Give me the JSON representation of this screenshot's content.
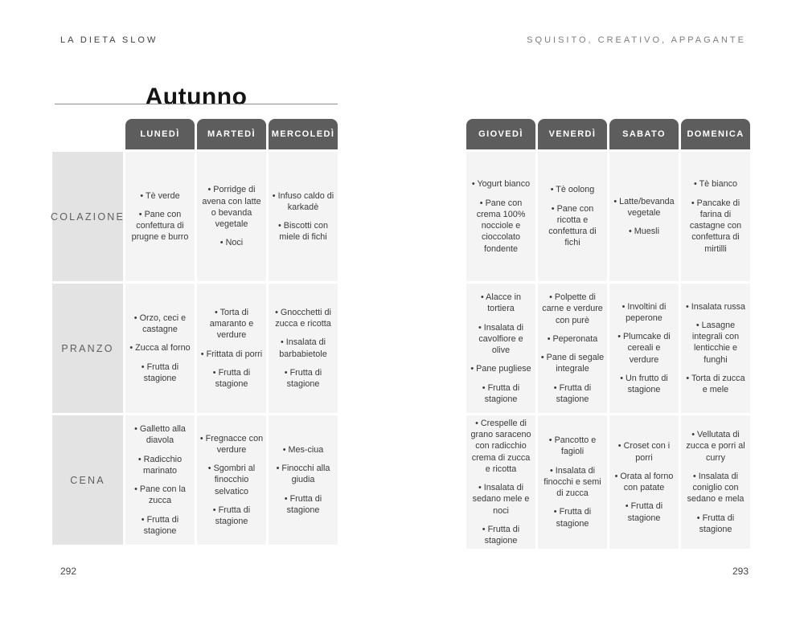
{
  "bullet": "•",
  "colors": {
    "tab_bg": "#5d5d5d",
    "tab_text": "#ffffff",
    "row_label_bg": "#e3e3e3",
    "cell_bg": "#f4f4f4",
    "cell_text": "#3a3a3a"
  },
  "page_left": {
    "running_head": "LA DIETA SLOW",
    "title": "Autunno",
    "page_number": "292",
    "table": {
      "day_headers": [
        "LUNEDÌ",
        "MARTEDÌ",
        "MERCOLEDÌ"
      ],
      "row_labels": [
        "COLAZIONE",
        "PRANZO",
        "CENA"
      ],
      "rows": [
        [
          [
            "Tè verde",
            "Pane con confettura di prugne e burro"
          ],
          [
            "Porridge di avena con latte o bevanda vegetale",
            "Noci"
          ],
          [
            "Infuso caldo di karkadè",
            "Biscotti con miele di fichi"
          ]
        ],
        [
          [
            "Orzo, ceci e castagne",
            "Zucca al forno",
            "Frutta di stagione"
          ],
          [
            "Torta di amaranto e verdure",
            "Frittata di porri",
            "Frutta di stagione"
          ],
          [
            "Gnocchetti di zucca e ricotta",
            "Insalata di barbabietole",
            "Frutta di stagione"
          ]
        ],
        [
          [
            "Galletto alla diavola",
            "Radicchio marinato",
            "Pane con la zucca",
            "Frutta di stagione"
          ],
          [
            "Fregnacce con verdure",
            "Sgombri al finocchio selvatico",
            "Frutta di stagione"
          ],
          [
            "Mes-ciua",
            "Finocchi alla giudia",
            "Frutta di stagione"
          ]
        ]
      ]
    }
  },
  "page_right": {
    "running_head": "SQUISITO, CREATIVO, APPAGANTE",
    "page_number": "293",
    "table": {
      "day_headers": [
        "GIOVEDÌ",
        "VENERDÌ",
        "SABATO",
        "DOMENICA"
      ],
      "rows": [
        [
          [
            "Yogurt bianco",
            "Pane con crema 100% nocciole e cioccolato fondente"
          ],
          [
            "Tè oolong",
            "Pane con ricotta e confettura di fichi"
          ],
          [
            "Latte/bevanda vegetale",
            "Muesli"
          ],
          [
            "Tè bianco",
            "Pancake di farina di castagne con confettura di mirtilli"
          ]
        ],
        [
          [
            "Alacce in tortiera",
            "Insalata di cavolfiore e olive",
            "Pane pugliese",
            "Frutta di stagione"
          ],
          [
            "Polpette di carne e verdure con purè",
            "Peperonata",
            "Pane di segale integrale",
            "Frutta di stagione"
          ],
          [
            "Involtini di peperone",
            "Plumcake di cereali e verdure",
            "Un frutto di stagione"
          ],
          [
            "Insalata russa",
            "Lasagne integrali con lenticchie e funghi",
            "Torta di zucca e mele"
          ]
        ],
        [
          [
            "Crespelle di grano saraceno con radicchio crema di zucca e ricotta",
            "Insalata di sedano mele e noci",
            "Frutta di stagione"
          ],
          [
            "Pancotto e fagioli",
            "Insalata di finocchi e semi di zucca",
            "Frutta di stagione"
          ],
          [
            "Croset con i porri",
            "Orata al forno con patate",
            "Frutta di stagione"
          ],
          [
            "Vellutata di zucca e porri al curry",
            "Insalata di coniglio con sedano e mela",
            "Frutta di stagione"
          ]
        ]
      ]
    }
  }
}
